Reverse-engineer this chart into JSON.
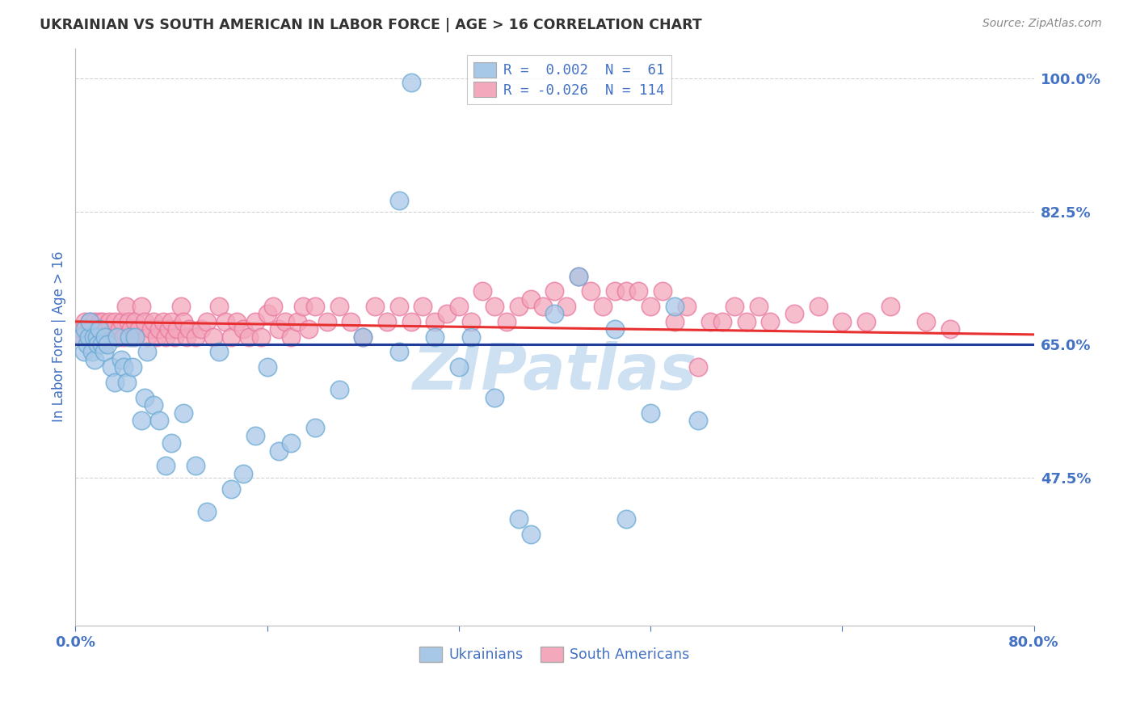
{
  "title": "UKRAINIAN VS SOUTH AMERICAN IN LABOR FORCE | AGE > 16 CORRELATION CHART",
  "source": "Source: ZipAtlas.com",
  "ylabel": "In Labor Force | Age > 16",
  "xlim": [
    0.0,
    0.8
  ],
  "ylim": [
    0.28,
    1.04
  ],
  "yticks": [
    0.475,
    0.65,
    0.825,
    1.0
  ],
  "ytick_labels": [
    "47.5%",
    "65.0%",
    "82.5%",
    "100.0%"
  ],
  "xticks": [
    0.0,
    0.16,
    0.32,
    0.48,
    0.64,
    0.8
  ],
  "xtick_labels": [
    "0.0%",
    "",
    "",
    "",
    "",
    "80.0%"
  ],
  "blue_R": 0.002,
  "blue_N": 61,
  "pink_R": -0.026,
  "pink_N": 114,
  "blue_color": "#A8C8E8",
  "pink_color": "#F4A8BC",
  "blue_edge_color": "#6AAAD4",
  "pink_edge_color": "#E878A0",
  "blue_line_color": "#1F3D99",
  "pink_line_color": "#E83030",
  "blue_line_y0": 0.65,
  "blue_line_y1": 0.65,
  "pink_line_y0": 0.68,
  "pink_line_y1": 0.663,
  "blue_scatter_x": [
    0.005,
    0.007,
    0.008,
    0.01,
    0.011,
    0.012,
    0.014,
    0.015,
    0.016,
    0.018,
    0.019,
    0.02,
    0.022,
    0.024,
    0.025,
    0.027,
    0.03,
    0.033,
    0.035,
    0.038,
    0.04,
    0.043,
    0.045,
    0.048,
    0.05,
    0.055,
    0.058,
    0.06,
    0.065,
    0.07,
    0.075,
    0.08,
    0.09,
    0.1,
    0.11,
    0.12,
    0.13,
    0.14,
    0.15,
    0.16,
    0.17,
    0.18,
    0.2,
    0.22,
    0.24,
    0.27,
    0.3,
    0.32,
    0.35,
    0.37,
    0.4,
    0.42,
    0.45,
    0.48,
    0.5,
    0.27,
    0.33,
    0.38,
    0.46,
    0.52,
    0.28
  ],
  "blue_scatter_y": [
    0.66,
    0.64,
    0.67,
    0.65,
    0.66,
    0.68,
    0.64,
    0.66,
    0.63,
    0.66,
    0.65,
    0.67,
    0.65,
    0.64,
    0.66,
    0.65,
    0.62,
    0.6,
    0.66,
    0.63,
    0.62,
    0.6,
    0.66,
    0.62,
    0.66,
    0.55,
    0.58,
    0.64,
    0.57,
    0.55,
    0.49,
    0.52,
    0.56,
    0.49,
    0.43,
    0.64,
    0.46,
    0.48,
    0.53,
    0.62,
    0.51,
    0.52,
    0.54,
    0.59,
    0.66,
    0.64,
    0.66,
    0.62,
    0.58,
    0.42,
    0.69,
    0.74,
    0.67,
    0.56,
    0.7,
    0.84,
    0.66,
    0.4,
    0.42,
    0.55,
    0.995
  ],
  "pink_scatter_x": [
    0.004,
    0.006,
    0.008,
    0.01,
    0.011,
    0.012,
    0.013,
    0.015,
    0.016,
    0.018,
    0.019,
    0.02,
    0.021,
    0.022,
    0.023,
    0.025,
    0.026,
    0.028,
    0.03,
    0.032,
    0.033,
    0.035,
    0.037,
    0.039,
    0.04,
    0.042,
    0.044,
    0.046,
    0.048,
    0.05,
    0.053,
    0.055,
    0.058,
    0.06,
    0.063,
    0.065,
    0.068,
    0.07,
    0.073,
    0.075,
    0.078,
    0.08,
    0.083,
    0.085,
    0.088,
    0.09,
    0.093,
    0.095,
    0.1,
    0.105,
    0.11,
    0.115,
    0.12,
    0.125,
    0.13,
    0.135,
    0.14,
    0.145,
    0.15,
    0.155,
    0.16,
    0.165,
    0.17,
    0.175,
    0.18,
    0.185,
    0.19,
    0.195,
    0.2,
    0.21,
    0.22,
    0.23,
    0.24,
    0.25,
    0.26,
    0.27,
    0.28,
    0.29,
    0.3,
    0.31,
    0.32,
    0.33,
    0.34,
    0.35,
    0.36,
    0.37,
    0.38,
    0.39,
    0.4,
    0.41,
    0.42,
    0.43,
    0.44,
    0.45,
    0.46,
    0.47,
    0.48,
    0.49,
    0.5,
    0.51,
    0.52,
    0.53,
    0.54,
    0.55,
    0.56,
    0.57,
    0.58,
    0.6,
    0.62,
    0.64,
    0.66,
    0.68,
    0.71,
    0.73
  ],
  "pink_scatter_y": [
    0.67,
    0.66,
    0.68,
    0.66,
    0.67,
    0.68,
    0.66,
    0.67,
    0.68,
    0.67,
    0.66,
    0.68,
    0.67,
    0.66,
    0.68,
    0.66,
    0.67,
    0.68,
    0.66,
    0.67,
    0.68,
    0.66,
    0.67,
    0.68,
    0.66,
    0.7,
    0.68,
    0.67,
    0.66,
    0.68,
    0.67,
    0.7,
    0.68,
    0.66,
    0.67,
    0.68,
    0.66,
    0.67,
    0.68,
    0.66,
    0.67,
    0.68,
    0.66,
    0.67,
    0.7,
    0.68,
    0.66,
    0.67,
    0.66,
    0.67,
    0.68,
    0.66,
    0.7,
    0.68,
    0.66,
    0.68,
    0.67,
    0.66,
    0.68,
    0.66,
    0.69,
    0.7,
    0.67,
    0.68,
    0.66,
    0.68,
    0.7,
    0.67,
    0.7,
    0.68,
    0.7,
    0.68,
    0.66,
    0.7,
    0.68,
    0.7,
    0.68,
    0.7,
    0.68,
    0.69,
    0.7,
    0.68,
    0.72,
    0.7,
    0.68,
    0.7,
    0.71,
    0.7,
    0.72,
    0.7,
    0.74,
    0.72,
    0.7,
    0.72,
    0.72,
    0.72,
    0.7,
    0.72,
    0.68,
    0.7,
    0.62,
    0.68,
    0.68,
    0.7,
    0.68,
    0.7,
    0.68,
    0.69,
    0.7,
    0.68,
    0.68,
    0.7,
    0.68,
    0.67
  ],
  "watermark_text": "ZIPatlas",
  "watermark_color": "#C5DCF0",
  "background_color": "#FFFFFF",
  "grid_color": "#CCCCCC",
  "axis_label_color": "#4472C4",
  "tick_label_color": "#4472C4",
  "title_color": "#333333",
  "source_color": "#888888"
}
